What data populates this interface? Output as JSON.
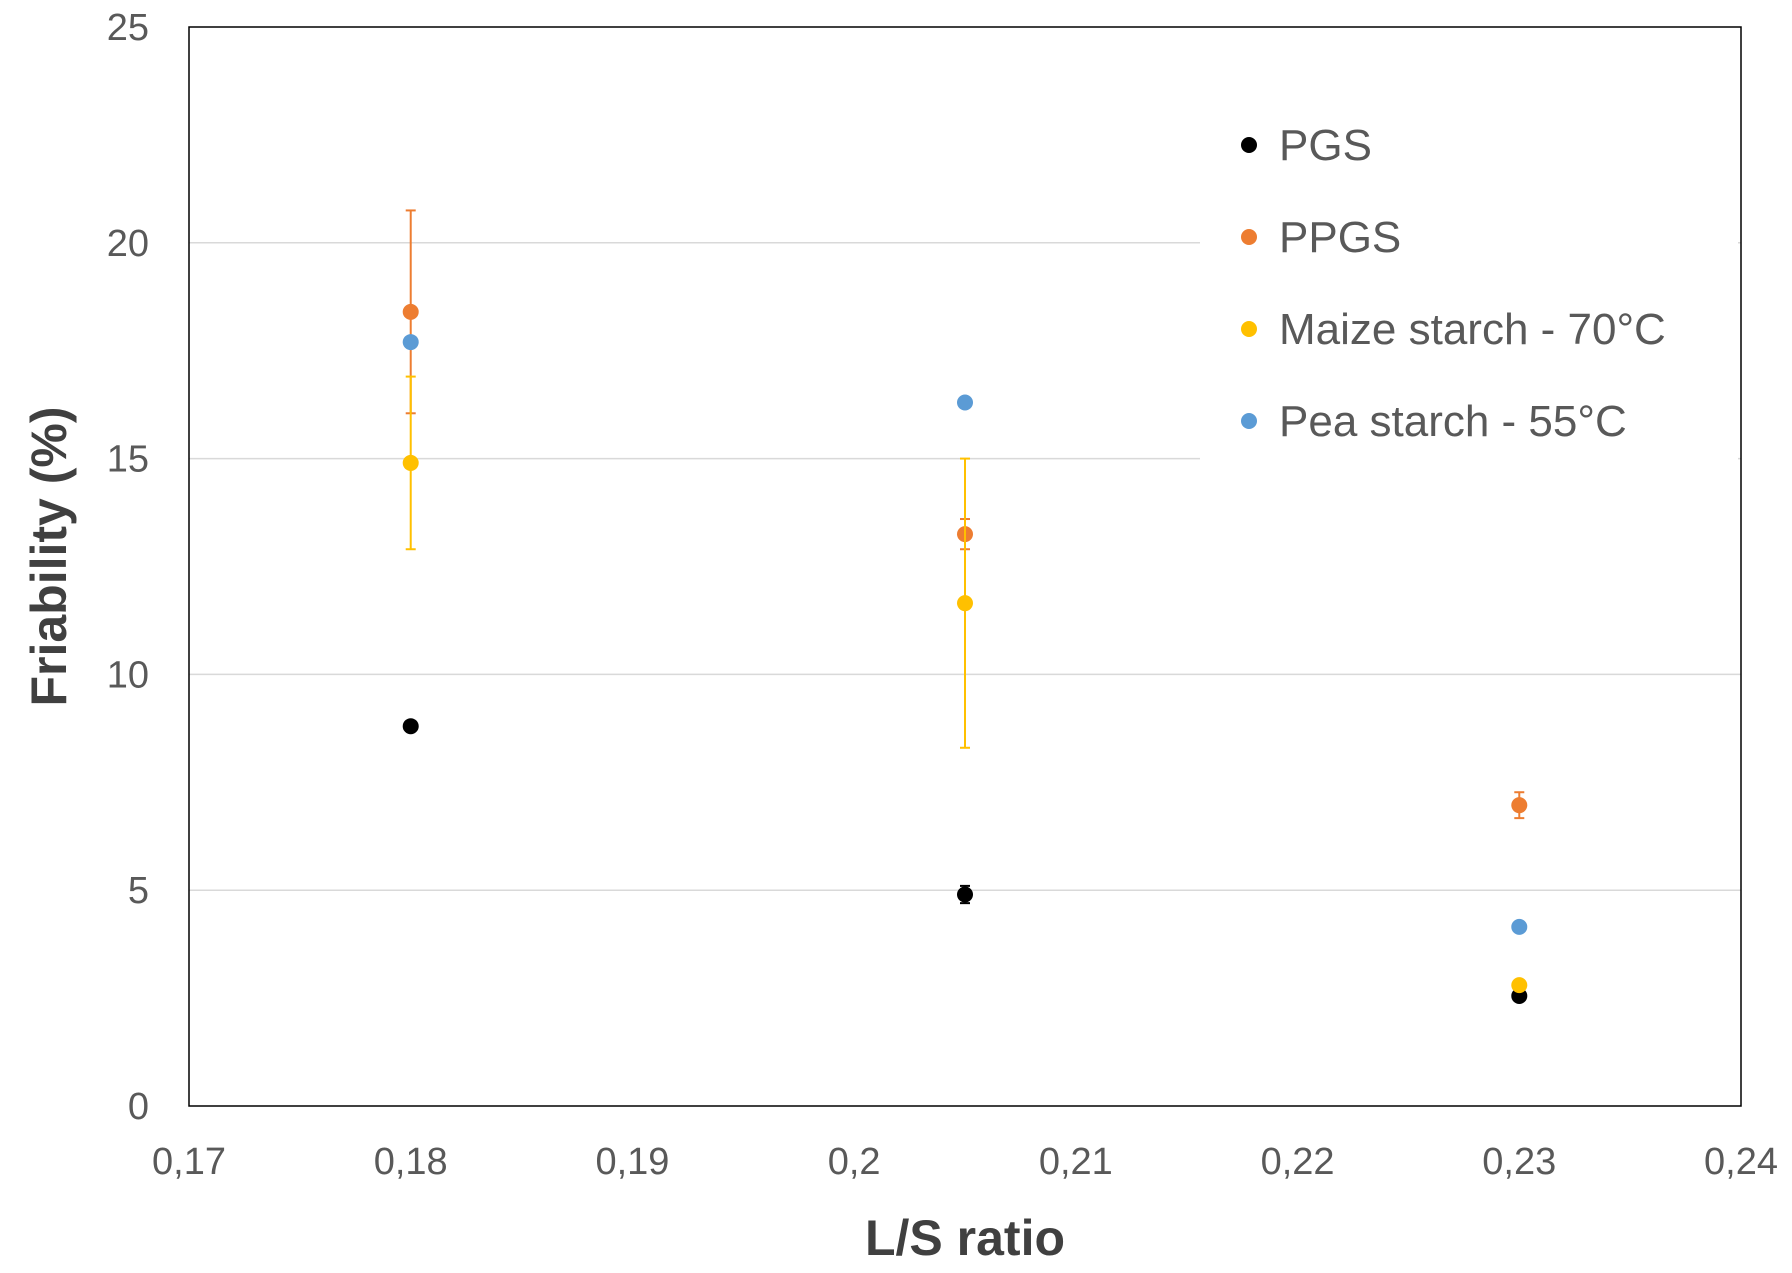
{
  "chart_data": {
    "type": "scatter",
    "title": "",
    "xlabel": "L/S ratio",
    "ylabel": "Friability (%)",
    "xlim": [
      0.17,
      0.24
    ],
    "ylim": [
      0,
      25
    ],
    "x_ticks": [
      "0,17",
      "0,18",
      "0,19",
      "0,2",
      "0,21",
      "0,22",
      "0,23",
      "0,24"
    ],
    "y_ticks": [
      "0",
      "5",
      "10",
      "15",
      "20",
      "25"
    ],
    "grid": "horizontal",
    "legend_position": "top-right",
    "series": [
      {
        "name": "PGS",
        "color": "#000000",
        "points": [
          {
            "x": 0.18,
            "y": 8.8,
            "err": 0
          },
          {
            "x": 0.205,
            "y": 4.9,
            "err": 0.2
          },
          {
            "x": 0.23,
            "y": 2.55,
            "err": 0
          }
        ]
      },
      {
        "name": "PPGS",
        "color": "#ED7D31",
        "points": [
          {
            "x": 0.18,
            "y": 18.4,
            "err": 2.35
          },
          {
            "x": 0.205,
            "y": 13.25,
            "err": 0.35
          },
          {
            "x": 0.23,
            "y": 6.97,
            "err": 0.3
          }
        ]
      },
      {
        "name": "Maize starch - 70°C",
        "color": "#FFC000",
        "points": [
          {
            "x": 0.18,
            "y": 14.9,
            "err": 2.0
          },
          {
            "x": 0.205,
            "y": 11.65,
            "err": 3.35
          },
          {
            "x": 0.23,
            "y": 2.8,
            "err": 0
          }
        ]
      },
      {
        "name": "Pea starch - 55°C",
        "color": "#5B9BD5",
        "points": [
          {
            "x": 0.18,
            "y": 17.7,
            "err": 0
          },
          {
            "x": 0.205,
            "y": 16.3,
            "err": 0
          },
          {
            "x": 0.23,
            "y": 4.15,
            "err": 0
          }
        ]
      }
    ]
  }
}
